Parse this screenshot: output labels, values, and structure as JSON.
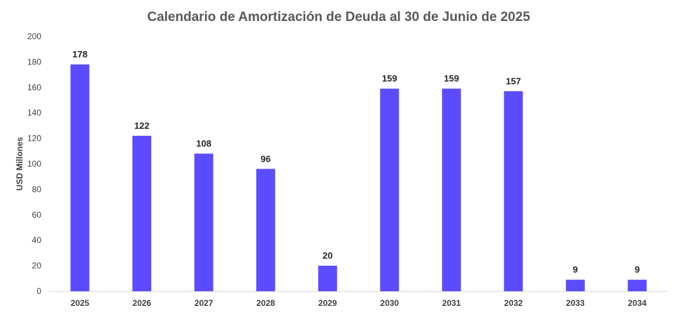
{
  "chart_data": {
    "type": "bar",
    "title": "Calendario de Amortización de Deuda al 30 de Junio de 2025",
    "xlabel": "",
    "ylabel": "USD Millones",
    "categories": [
      "2025",
      "2026",
      "2027",
      "2028",
      "2029",
      "2030",
      "2031",
      "2032",
      "2033",
      "2034"
    ],
    "values": [
      178,
      122,
      108,
      96,
      20,
      159,
      159,
      157,
      9,
      9
    ],
    "data_labels": [
      "178",
      "122",
      "108",
      "96",
      "20",
      "159",
      "159",
      "157",
      "9",
      "9"
    ],
    "ylim": [
      0,
      200
    ],
    "yticks": [
      0,
      20,
      40,
      60,
      80,
      100,
      120,
      140,
      160,
      180,
      200
    ],
    "grid": false,
    "legend": "none",
    "bar_color": "#5B4CFF"
  }
}
